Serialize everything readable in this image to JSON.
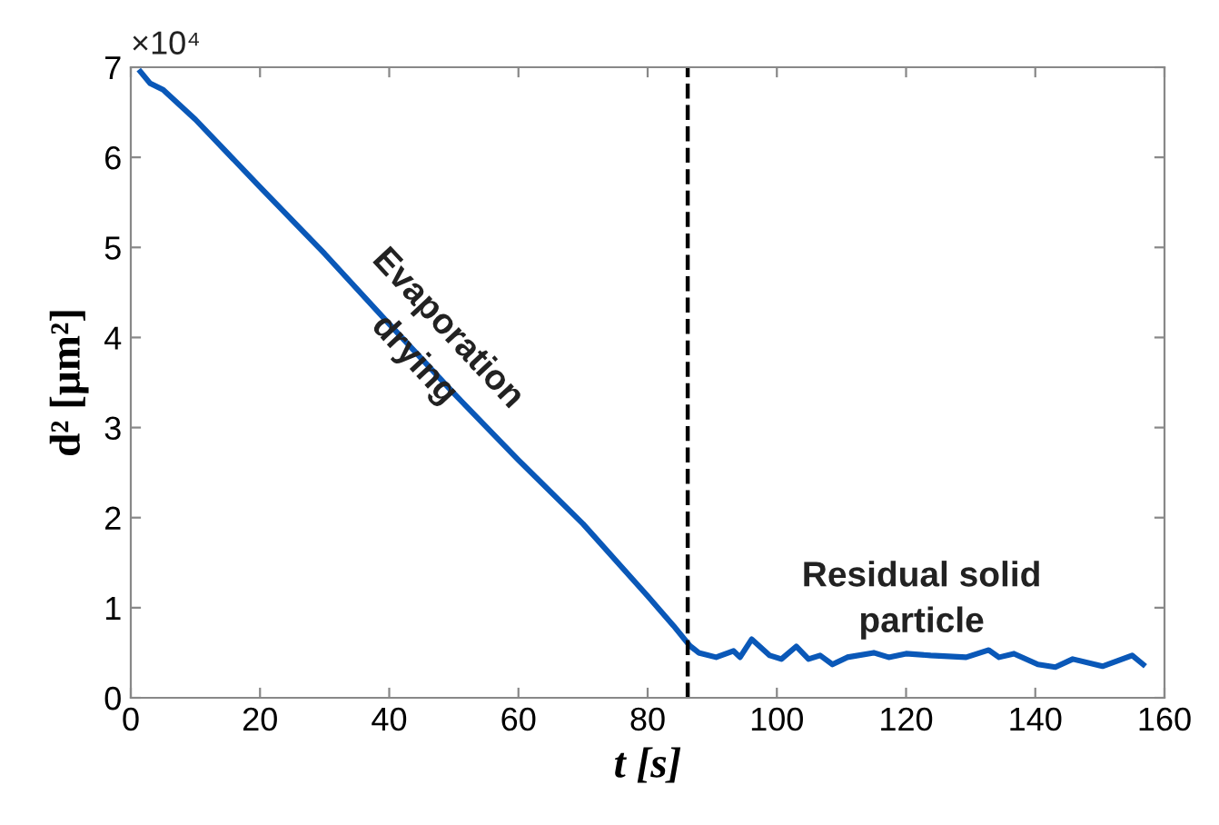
{
  "chart_data": {
    "type": "line",
    "xlabel": "t [s]",
    "ylabel": "d² [μm²]",
    "annotations": [
      "×10⁴",
      "Evaporation\ndrying",
      "Residual solid\nparticle"
    ],
    "series": [
      {
        "color": "#0a58b8",
        "x": [
          1.5,
          3,
          5,
          10,
          20,
          30,
          40,
          50,
          60,
          70,
          80,
          84,
          86.5,
          87.9,
          90.6,
          93.3,
          94.3,
          96.1,
          98.9,
          100.7,
          103,
          104.9,
          106.7,
          108.6,
          110.9,
          115,
          117.3,
          120,
          123.8,
          129.3,
          132.8,
          134.4,
          136.7,
          140.4,
          143.1,
          145.8,
          150.4,
          155,
          156.7
        ],
        "values": [
          6.95,
          6.82,
          6.75,
          6.42,
          5.67,
          4.93,
          4.15,
          3.38,
          2.64,
          1.93,
          1.13,
          0.8,
          0.58,
          0.5,
          0.45,
          0.52,
          0.45,
          0.65,
          0.47,
          0.43,
          0.57,
          0.43,
          0.47,
          0.37,
          0.45,
          0.5,
          0.45,
          0.49,
          0.47,
          0.45,
          0.53,
          0.45,
          0.49,
          0.37,
          0.34,
          0.43,
          0.35,
          0.47,
          0.37
        ]
      }
    ],
    "xlim": [
      0,
      160
    ],
    "xticks": [
      0,
      20,
      40,
      60,
      80,
      100,
      120,
      140,
      160
    ],
    "ylim": [
      0,
      7
    ],
    "yticks": [
      0,
      1,
      2,
      3,
      4,
      5,
      6,
      7
    ],
    "ref_lines": [
      {
        "axis": "x",
        "value": 86.2,
        "color": "#000000",
        "line_style": "dashed"
      }
    ],
    "grid": false,
    "legend": false,
    "marker": "none",
    "line_style": "solid"
  }
}
